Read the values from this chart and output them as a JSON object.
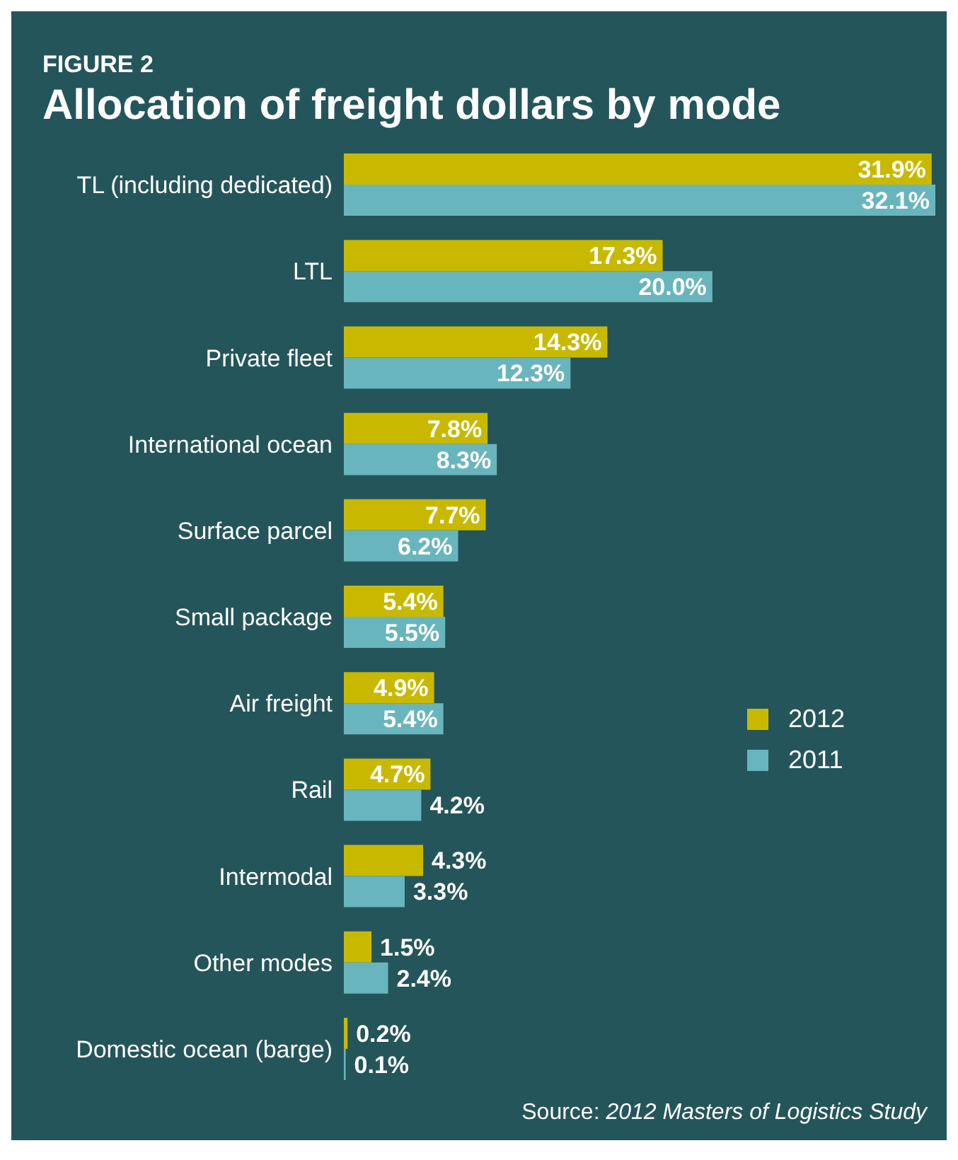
{
  "chart_data": {
    "type": "bar",
    "orientation": "horizontal",
    "subtitle": "FIGURE 2",
    "title": "Allocation of freight dollars by mode",
    "categories": [
      "TL (including dedicated)",
      "LTL",
      "Private fleet",
      "International ocean",
      "Surface parcel",
      "Small package",
      "Air freight",
      "Rail",
      "Intermodal",
      "Other modes",
      "Domestic ocean (barge)"
    ],
    "series": [
      {
        "name": "2012",
        "color": "#c8b900",
        "values": [
          31.9,
          17.3,
          14.3,
          7.8,
          7.7,
          5.4,
          4.9,
          4.7,
          4.3,
          1.5,
          0.2
        ],
        "value_labels": [
          "31.9%",
          "17.3%",
          "14.3%",
          "7.8%",
          "7.7%",
          "5.4%",
          "4.9%",
          "4.7%",
          "4.3%",
          "1.5%",
          "0.2%"
        ]
      },
      {
        "name": "2011",
        "color": "#69b5bd",
        "values": [
          32.1,
          20.0,
          12.3,
          8.3,
          6.2,
          5.5,
          5.4,
          4.2,
          3.3,
          2.4,
          0.1
        ],
        "value_labels": [
          "32.1%",
          "20.0%",
          "12.3%",
          "8.3%",
          "6.2%",
          "5.5%",
          "5.4%",
          "4.2%",
          "3.3%",
          "2.4%",
          "0.1%"
        ]
      }
    ],
    "legend": "right",
    "annotations": [
      "Source: 2012 Masters of Logistics Study"
    ]
  }
}
